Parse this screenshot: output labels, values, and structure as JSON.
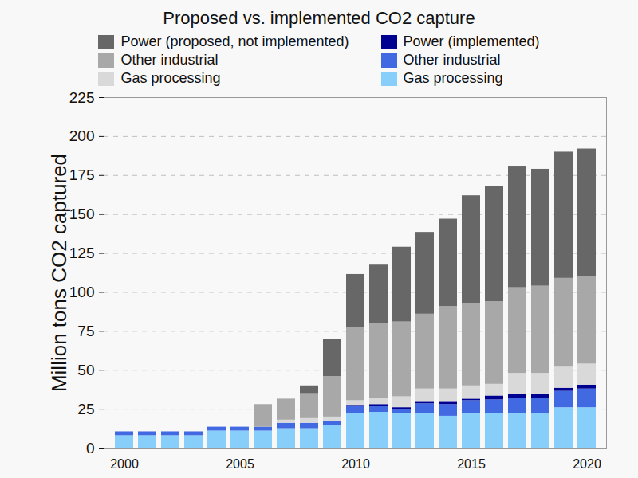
{
  "chart_data": {
    "type": "bar",
    "title": "Proposed vs. implemented CO2 capture",
    "y_label": "Million tons CO2 captured",
    "categories": [
      "2000",
      null,
      null,
      null,
      null,
      "2005",
      null,
      null,
      null,
      null,
      "2010",
      null,
      null,
      null,
      null,
      "2015",
      null,
      null,
      null,
      null,
      "2020"
    ],
    "series": [
      {
        "name": "Power (proposed, not implemented)",
        "color": "#676767",
        "values": [
          0,
          0,
          0,
          0,
          0,
          0,
          0,
          0,
          5,
          24,
          34,
          37.5,
          48,
          52.5,
          56,
          69,
          74,
          78,
          75,
          81,
          82
        ]
      },
      {
        "name": "Other industrial",
        "color": "#a8a8a8",
        "values": [
          0,
          0,
          0,
          0,
          0,
          0,
          14.5,
          13.5,
          16,
          26,
          47,
          48,
          48,
          48,
          53,
          53,
          53,
          55,
          56,
          57,
          56
        ]
      },
      {
        "name": "Gas processing",
        "color": "#d9d9d9",
        "values": [
          0,
          0,
          0,
          0,
          0,
          0,
          0,
          2,
          3,
          3,
          3,
          4,
          7,
          8,
          8,
          8.5,
          7.5,
          13.5,
          13.5,
          13.5,
          13.5
        ]
      },
      {
        "name": "Power (implemented)",
        "color": "#000090",
        "values": [
          0,
          0,
          0,
          0,
          0,
          0,
          0,
          0,
          0,
          0,
          0.5,
          1,
          1,
          1.5,
          2,
          1,
          2.5,
          2.5,
          2.5,
          2,
          2.5
        ]
      },
      {
        "name": "Other industrial",
        "color": "#4169e1",
        "values": [
          2.5,
          2.5,
          2.5,
          2.5,
          2.5,
          2.5,
          2.5,
          3.5,
          3.5,
          2.5,
          4.5,
          4,
          3,
          6.5,
          7.5,
          8.5,
          9,
          10,
          10,
          10.5,
          12
        ]
      },
      {
        "name": "Gas processing",
        "color": "#87cefa",
        "values": [
          8,
          8,
          8,
          8,
          11,
          11,
          11,
          12.5,
          12.5,
          14.5,
          22.5,
          23,
          22,
          22,
          20.5,
          22,
          22,
          22,
          22,
          26,
          26
        ]
      }
    ],
    "ylim": [
      0,
      225
    ],
    "yticks": [
      0,
      25,
      50,
      75,
      100,
      125,
      150,
      175,
      200,
      225
    ],
    "stacked": true,
    "grid": true,
    "legend": "top"
  }
}
